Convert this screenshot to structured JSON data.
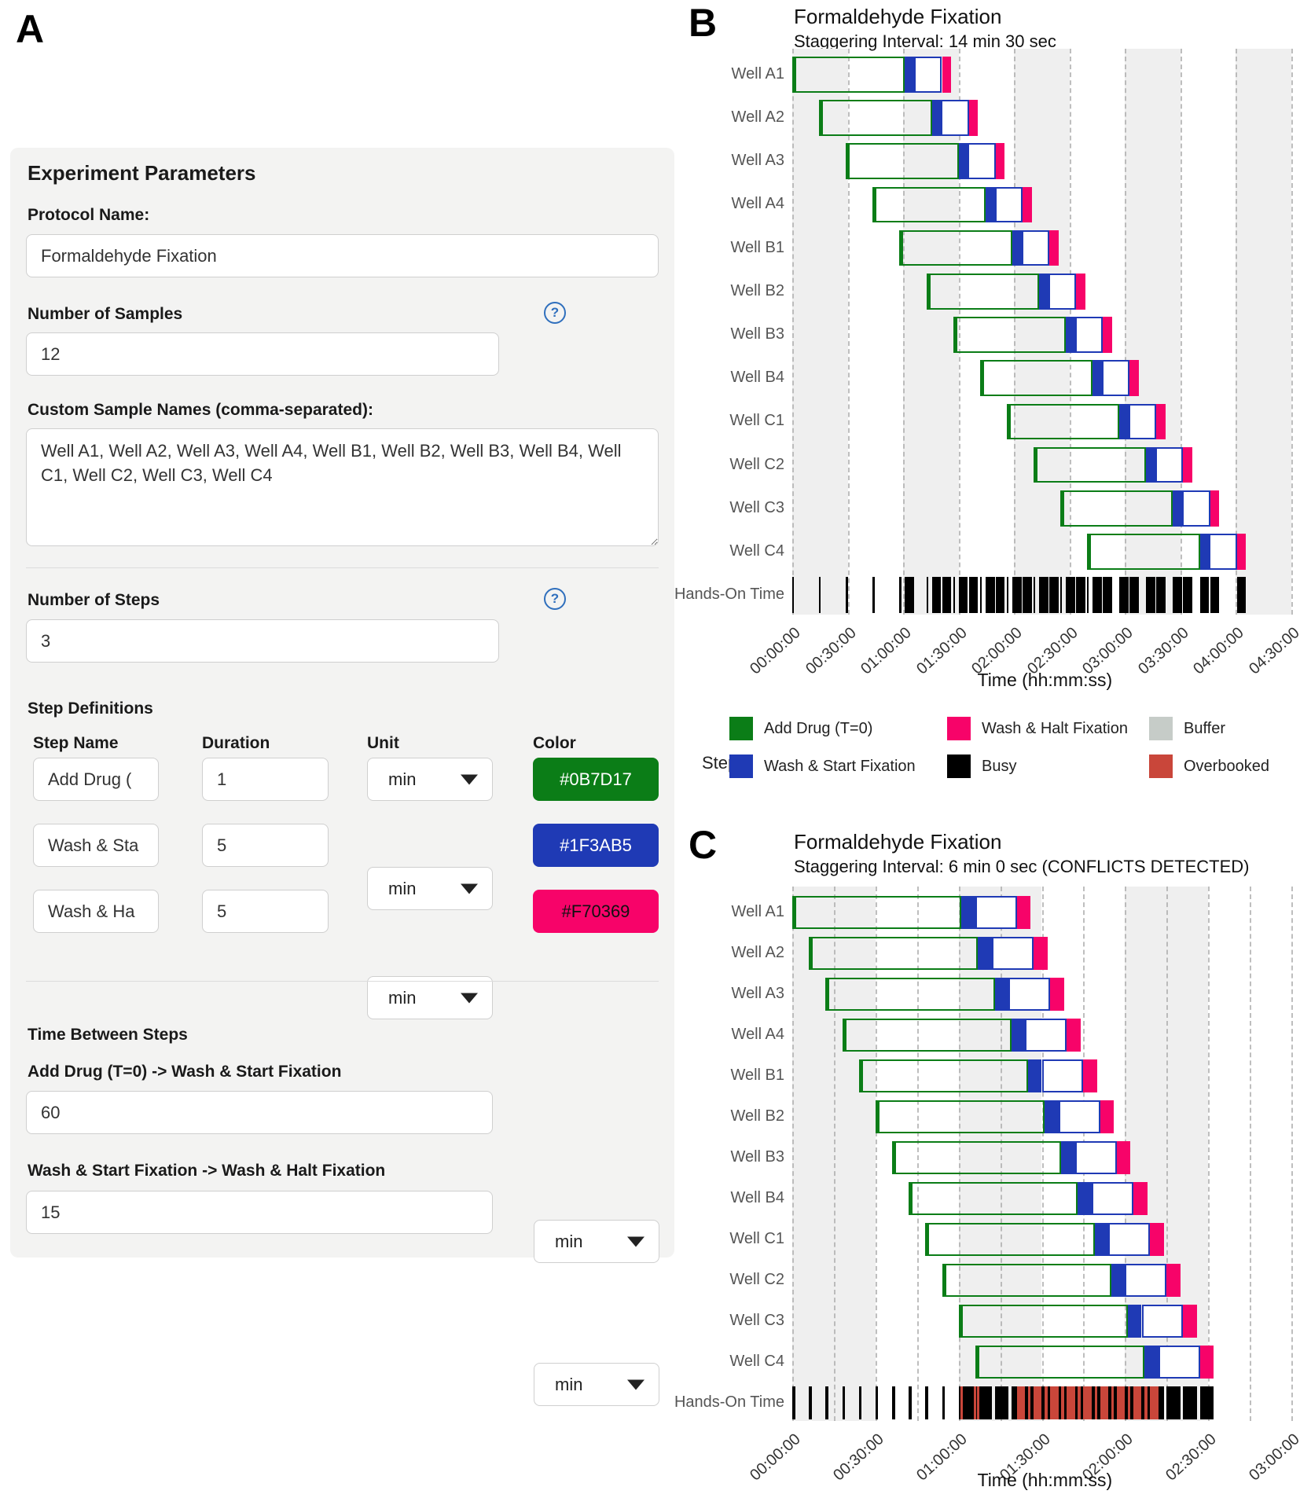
{
  "panelA": {
    "letter": "A",
    "title": "Experiment Parameters",
    "protocol": {
      "label": "Protocol Name:",
      "value": "Formaldehyde Fixation"
    },
    "num_samples": {
      "label": "Number of Samples",
      "value": "12",
      "help_icon": "?"
    },
    "custom_names": {
      "label": "Custom Sample Names (comma-separated):",
      "value": "Well A1, Well A2, Well A3, Well A4, Well B1, Well B2, Well B3, Well B4, Well C1, Well C2, Well C3, Well C4"
    },
    "num_steps": {
      "label": "Number of Steps",
      "value": "3",
      "help_icon": "?"
    },
    "step_definitions": {
      "title": "Step Definitions",
      "headers": [
        "Step Name",
        "Duration",
        "Unit",
        "Color"
      ],
      "rows": [
        {
          "name": "Add Drug (",
          "duration": "1",
          "unit": "min",
          "color_hex": "#0B7D17",
          "text_color": "#ffffff"
        },
        {
          "name": "Wash & Sta",
          "duration": "5",
          "unit": "min",
          "color_hex": "#1F3AB5",
          "text_color": "#ffffff"
        },
        {
          "name": "Wash & Ha",
          "duration": "5",
          "unit": "min",
          "color_hex": "#F70369",
          "text_color": "#111111"
        }
      ]
    },
    "time_between": {
      "title": "Time Between Steps",
      "gaps": [
        {
          "label": "Add Drug (T=0) -> Wash & Start Fixation",
          "value": "60",
          "unit": "min"
        },
        {
          "label": "Wash & Start Fixation -> Wash & Halt Fixation",
          "value": "15",
          "unit": "min"
        }
      ]
    }
  },
  "legend": {
    "title": "Step",
    "entries": [
      {
        "label": "Add Drug (T=0)",
        "color": "#0B7D17"
      },
      {
        "label": "Wash & Halt Fixation",
        "color": "#F70369"
      },
      {
        "label": "Buffer",
        "color": "#c6ccc8"
      },
      {
        "label": "Wash & Start Fixation",
        "color": "#1F3AB5"
      },
      {
        "label": "Busy",
        "color": "#000000"
      },
      {
        "label": "Overbooked",
        "color": "#c9463a"
      }
    ]
  },
  "chart_data": [
    {
      "id": "B",
      "type": "gantt",
      "panel_letter": "B",
      "title": "Formaldehyde Fixation",
      "subtitle": "Staggering Interval: 14 min 30 sec",
      "conflicts": false,
      "wells": [
        "Well A1",
        "Well A2",
        "Well A3",
        "Well A4",
        "Well B1",
        "Well B2",
        "Well B3",
        "Well B4",
        "Well C1",
        "Well C2",
        "Well C3",
        "Well C4"
      ],
      "stagger_min": 14.5,
      "segments": [
        {
          "name": "Add Drug (T=0) incubation",
          "start_min": 0,
          "end_min": 61,
          "color": "#0B7D17",
          "fill": "none"
        },
        {
          "name": "Wash & Start Fixation",
          "start_min": 61,
          "end_min": 66,
          "color": "#1F3AB5",
          "fill": "solid"
        },
        {
          "name": "Fixation wait",
          "start_min": 66,
          "end_min": 81,
          "color": "#1F3AB5",
          "fill": "white"
        },
        {
          "name": "Wash & Halt Fixation",
          "start_min": 81,
          "end_min": 86,
          "color": "#F70369",
          "fill": "solid"
        }
      ],
      "hands_on_label": "Hands-On Time",
      "hands_on_events": [
        {
          "offset_min": 0,
          "duration_min": 1
        },
        {
          "offset_min": 61,
          "duration_min": 5
        },
        {
          "offset_min": 81,
          "duration_min": 5
        }
      ],
      "busy_color": "#000000",
      "overbooked_color": "#c9463a",
      "x_max_min": 270,
      "grid_step_min": 30,
      "band_step_min": 30,
      "x_tick_step_min": 30,
      "x_ticks": [
        "00:00:00",
        "00:30:00",
        "01:00:00",
        "01:30:00",
        "02:00:00",
        "02:30:00",
        "03:00:00",
        "03:30:00",
        "04:00:00",
        "04:30:00"
      ],
      "xlabel": "Time (hh:mm:ss)"
    },
    {
      "id": "C",
      "type": "gantt",
      "panel_letter": "C",
      "title": "Formaldehyde Fixation",
      "subtitle": "Staggering Interval: 6 min 0 sec (CONFLICTS DETECTED)",
      "conflicts": true,
      "wells": [
        "Well A1",
        "Well A2",
        "Well A3",
        "Well A4",
        "Well B1",
        "Well B2",
        "Well B3",
        "Well B4",
        "Well C1",
        "Well C2",
        "Well C3",
        "Well C4"
      ],
      "stagger_min": 6,
      "segments": [
        {
          "name": "Add Drug (T=0) incubation",
          "start_min": 0,
          "end_min": 61,
          "color": "#0B7D17",
          "fill": "none"
        },
        {
          "name": "Wash & Start Fixation",
          "start_min": 61,
          "end_min": 66,
          "color": "#1F3AB5",
          "fill": "solid"
        },
        {
          "name": "Fixation wait",
          "start_min": 66,
          "end_min": 81,
          "color": "#1F3AB5",
          "fill": "white"
        },
        {
          "name": "Wash & Halt Fixation",
          "start_min": 81,
          "end_min": 86,
          "color": "#F70369",
          "fill": "solid"
        }
      ],
      "hands_on_label": "Hands-On Time",
      "hands_on_events": [
        {
          "offset_min": 0,
          "duration_min": 1
        },
        {
          "offset_min": 61,
          "duration_min": 5
        },
        {
          "offset_min": 81,
          "duration_min": 5
        }
      ],
      "busy_color": "#000000",
      "overbooked_color": "#c9463a",
      "x_max_min": 180,
      "grid_step_min": 15,
      "band_step_min": 30,
      "x_tick_step_min": 30,
      "x_ticks": [
        "00:00:00",
        "00:30:00",
        "01:00:00",
        "01:30:00",
        "02:00:00",
        "02:30:00",
        "03:00:00"
      ],
      "xlabel": "Time (hh:mm:ss)"
    }
  ]
}
